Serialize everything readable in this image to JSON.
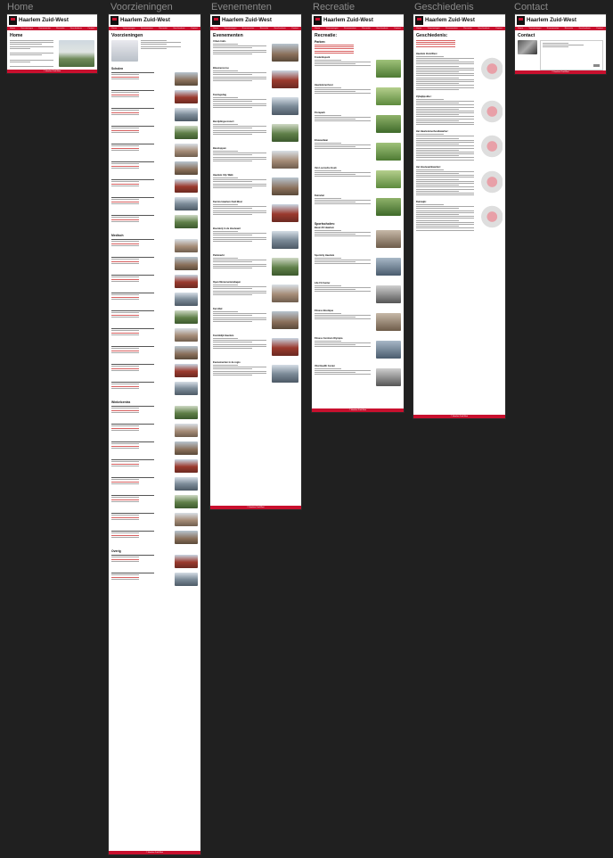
{
  "site": {
    "title": "Haarlem Zuid-West"
  },
  "nav": [
    "Home",
    "Voorzieningen",
    "Evenementen",
    "Recreatie",
    "Geschiedenis",
    "Contact"
  ],
  "frames": {
    "home": {
      "label": "Home",
      "heading": "Home"
    },
    "voorzieningen": {
      "label": "Voorzieningen",
      "heading": "Voorzieningen",
      "sections": {
        "scholen": "Scholen",
        "medisch": "Medisch",
        "winkels": "Winkelcentra",
        "overig": "Overig"
      }
    },
    "evenementen": {
      "label": "Evenementen",
      "heading": "Evenementen",
      "items": [
        "Urban trails",
        "Bloemencorso",
        "Koningsdag",
        "Bevrijdingsconcert",
        "Bavoloppen",
        "Haarlem City Walk",
        "Kermis Haarlem Zuid-West",
        "Boerderij in de Houtvaart",
        "Parkmarkt",
        "Open Monumentendagen",
        "Kerstfair",
        "Koninklijk Haarlem",
        "Evenementen in de regio"
      ]
    },
    "recreatie": {
      "label": "Recreatie",
      "heading": "Recreatie:",
      "parks_heading": "Parken:",
      "parks": [
        "Frederikspark",
        "Haarlemmerhout",
        "Florapark",
        "Elswoutlaan",
        "Van Loonsche Hoek",
        "Duinvliet"
      ],
      "gyms_heading": "Sportscholen:",
      "gyms": [
        "Basic-Fit Haarlem",
        "Sportcity Haarlem",
        "Life Fit Center",
        "Fitness Boutique",
        "Fitness Centrum Olympia",
        "Vital Health Center"
      ]
    },
    "geschiedenis": {
      "label": "Geschiedenis",
      "heading": "Geschiedenis:",
      "sections": [
        "Haarlem Zuid-West",
        "Zijlwijkpolder:",
        "Het Haarlemmerhoutkwartier:",
        "Het Houtvaartkwartier:",
        "Duinwijk:"
      ]
    },
    "contact": {
      "label": "Contact",
      "heading": "Contact"
    }
  },
  "footer": {
    "text": "© Haarlem Zuid-West"
  },
  "colors": {
    "accent": "#c8102e",
    "canvas": "#202020",
    "label": "#8a8a8a"
  }
}
